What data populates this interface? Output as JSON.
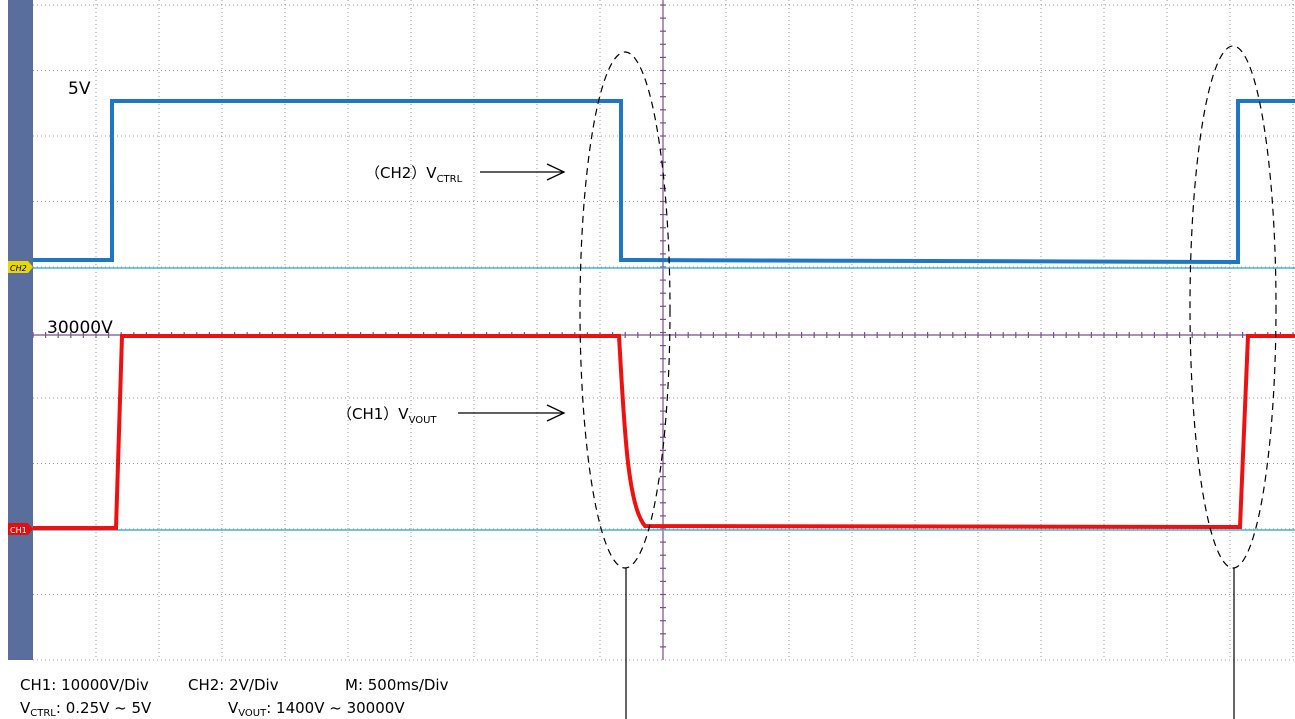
{
  "labels": {
    "ch2_level": "5V",
    "ch1_level": "30000V",
    "ch2_marker": "CH2",
    "ch1_marker": "CH1",
    "ch2_trace": {
      "prefix": "（CH2）V",
      "sub": "CTRL"
    },
    "ch1_trace": {
      "prefix": "（CH1）V",
      "sub": "VOUT"
    }
  },
  "footer": {
    "ch1_scale": "CH1: 10000V/Div",
    "ch2_scale": "CH2: 2V/Div",
    "time_scale": "M: 500ms/Div",
    "ctrl_range": {
      "v": "V",
      "sub": "CTRL",
      "rest": ": 0.25V ~ 5V"
    },
    "vout_range": {
      "v": "V",
      "sub": "VOUT",
      "rest": ": 1400V ~ 30000V"
    }
  }
}
